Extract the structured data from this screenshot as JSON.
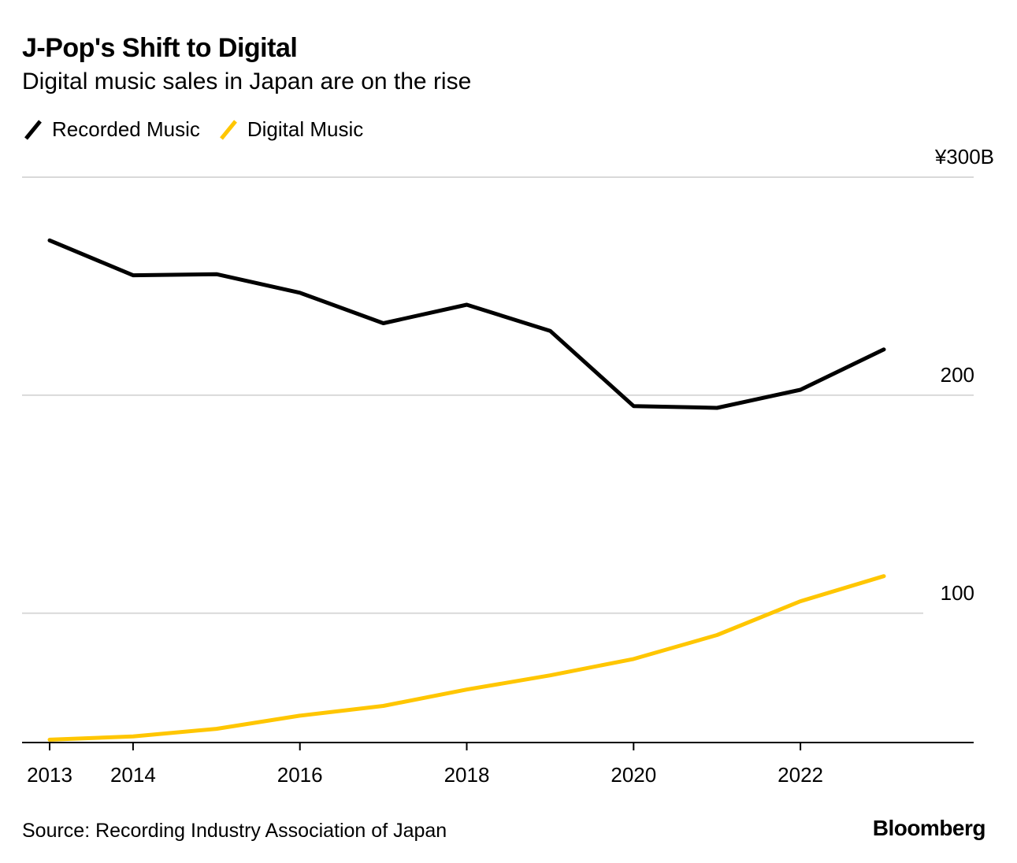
{
  "header": {
    "title": "J-Pop's Shift to Digital",
    "subtitle": "Digital music sales in Japan are on the rise"
  },
  "footer": {
    "source": "Source: Recording Industry Association of Japan",
    "brand": "Bloomberg"
  },
  "chart_data": {
    "type": "line",
    "title": "J-Pop's Shift to Digital",
    "subtitle": "Digital music sales in Japan are on the rise",
    "xlabel": "",
    "ylabel": "",
    "x": [
      2013,
      2014,
      2015,
      2016,
      2017,
      2018,
      2019,
      2020,
      2021,
      2022,
      2023
    ],
    "x_ticks": [
      {
        "value": 2013,
        "label": "2013"
      },
      {
        "value": 2014,
        "label": "2014"
      },
      {
        "value": 2016,
        "label": "2016"
      },
      {
        "value": 2018,
        "label": "2018"
      },
      {
        "value": 2020,
        "label": "2020"
      },
      {
        "value": 2022,
        "label": "2022"
      }
    ],
    "y_ticks": [
      {
        "value": 100,
        "label": "100"
      },
      {
        "value": 200,
        "label": "200"
      },
      {
        "value": 300,
        "label": "¥300B"
      }
    ],
    "ylim": [
      40.7,
      300
    ],
    "grid": true,
    "legend_position": "top-left",
    "series": [
      {
        "name": "Recorded Music",
        "color": "#000000",
        "values": [
          271,
          255,
          255.5,
          247,
          233,
          241.5,
          229.5,
          195,
          194.2,
          202.5,
          221
        ]
      },
      {
        "name": "Digital Music",
        "color": "#ffc600",
        "values": [
          42,
          43.5,
          47,
          53,
          57.5,
          65,
          71.5,
          79,
          90,
          105.5,
          117
        ]
      }
    ]
  }
}
